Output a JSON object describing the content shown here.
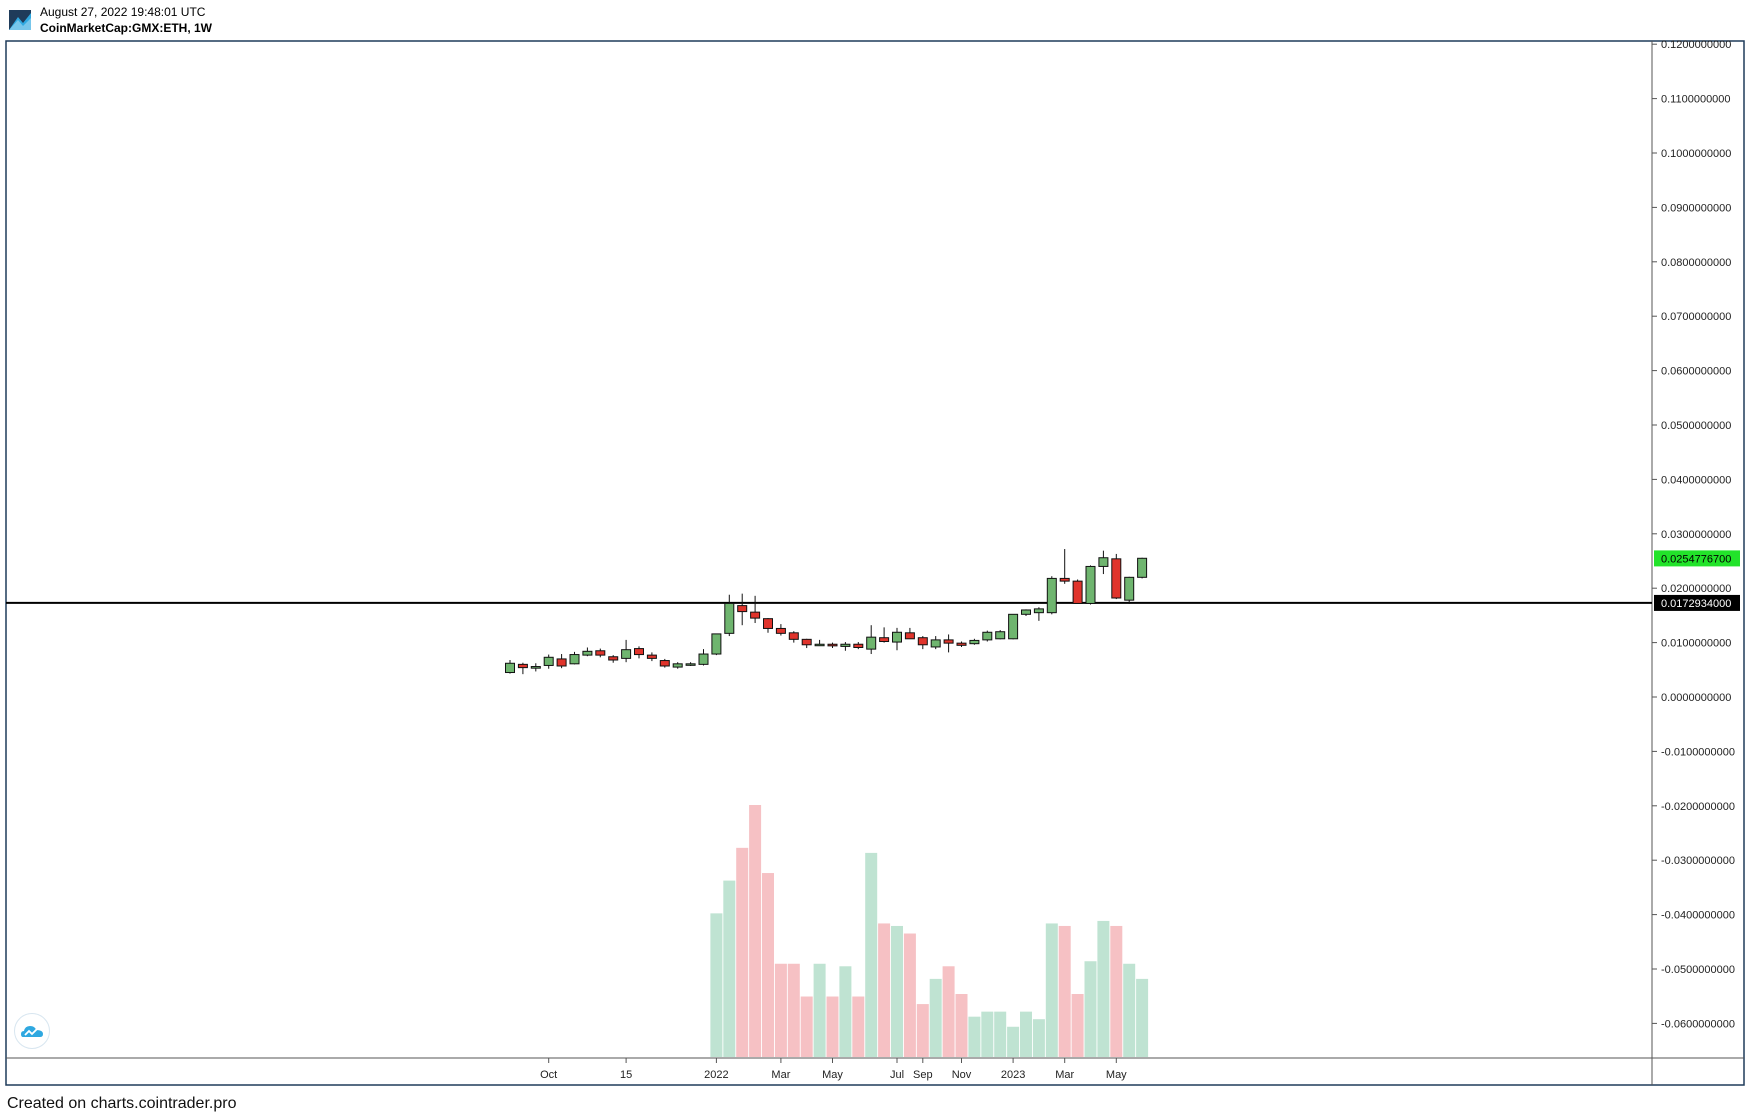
{
  "header": {
    "timestamp": "August 27, 2022 19:48:01 UTC",
    "symbol": "CoinMarketCap:GMX:ETH, 1W"
  },
  "footer": {
    "credit": "Created on charts.cointrader.pro"
  },
  "colors": {
    "up_candle": "#6fb56f",
    "down_candle": "#e0342c",
    "up_volume": "#bfe3d2",
    "down_volume": "#f6c1c4",
    "last_price_tag": "#22e32a",
    "horizontal_line_tag": "#000000",
    "frame": "#1f3b5a"
  },
  "chart_data": {
    "type": "candlestick",
    "title": "CoinMarketCap:GMX:ETH, 1W",
    "y_axis": {
      "min": -0.065,
      "max": 0.12,
      "ticks": [
        "0.1200000000",
        "0.1100000000",
        "0.1000000000",
        "0.0900000000",
        "0.0800000000",
        "0.0700000000",
        "0.0600000000",
        "0.0500000000",
        "0.0400000000",
        "0.0300000000",
        "0.0200000000",
        "0.0100000000",
        "0.0000000000",
        "-0.0100000000",
        "-0.0200000000",
        "-0.0300000000",
        "-0.0400000000",
        "-0.0500000000",
        "-0.0600000000"
      ],
      "tick_values": [
        0.12,
        0.11,
        0.1,
        0.09,
        0.08,
        0.07,
        0.06,
        0.05,
        0.04,
        0.03,
        0.02,
        0.01,
        0.0,
        -0.01,
        -0.02,
        -0.03,
        -0.04,
        -0.05,
        -0.06
      ]
    },
    "x_axis": {
      "labels": [
        "Oct",
        "15",
        "2022",
        "Mar",
        "May",
        "Jul",
        "Sep",
        "Nov",
        "2023",
        "Mar",
        "May"
      ],
      "label_index": [
        3,
        9,
        16,
        21,
        25,
        30,
        32,
        35,
        39,
        43,
        47
      ]
    },
    "last_price": {
      "value": 0.02547767,
      "label": "0.0254776700"
    },
    "horizontal_line": {
      "value": 0.0172934,
      "label": "0.0172934000"
    },
    "candles": [
      {
        "o": 0.0045,
        "h": 0.0068,
        "l": 0.0043,
        "c": 0.0062
      },
      {
        "o": 0.006,
        "h": 0.0063,
        "l": 0.0042,
        "c": 0.0054
      },
      {
        "o": 0.0053,
        "h": 0.0062,
        "l": 0.0047,
        "c": 0.0056
      },
      {
        "o": 0.0058,
        "h": 0.0078,
        "l": 0.0052,
        "c": 0.0073
      },
      {
        "o": 0.007,
        "h": 0.0079,
        "l": 0.0053,
        "c": 0.0057
      },
      {
        "o": 0.0061,
        "h": 0.0083,
        "l": 0.006,
        "c": 0.0078
      },
      {
        "o": 0.0077,
        "h": 0.0091,
        "l": 0.0075,
        "c": 0.0084
      },
      {
        "o": 0.0085,
        "h": 0.0089,
        "l": 0.0073,
        "c": 0.0077
      },
      {
        "o": 0.0074,
        "h": 0.0077,
        "l": 0.0063,
        "c": 0.0068
      },
      {
        "o": 0.0071,
        "h": 0.0105,
        "l": 0.0064,
        "c": 0.0087
      },
      {
        "o": 0.0089,
        "h": 0.0093,
        "l": 0.0071,
        "c": 0.0078
      },
      {
        "o": 0.0077,
        "h": 0.0082,
        "l": 0.0066,
        "c": 0.0071
      },
      {
        "o": 0.0067,
        "h": 0.007,
        "l": 0.0054,
        "c": 0.0057
      },
      {
        "o": 0.0055,
        "h": 0.0064,
        "l": 0.0052,
        "c": 0.0061
      },
      {
        "o": 0.0059,
        "h": 0.0064,
        "l": 0.0057,
        "c": 0.0061
      },
      {
        "o": 0.006,
        "h": 0.0088,
        "l": 0.0058,
        "c": 0.0079
      },
      {
        "o": 0.0079,
        "h": 0.0116,
        "l": 0.0077,
        "c": 0.0116
      },
      {
        "o": 0.0117,
        "h": 0.0188,
        "l": 0.0112,
        "c": 0.0172
      },
      {
        "o": 0.0168,
        "h": 0.019,
        "l": 0.0132,
        "c": 0.0157
      },
      {
        "o": 0.0156,
        "h": 0.0186,
        "l": 0.0136,
        "c": 0.0145
      },
      {
        "o": 0.0144,
        "h": 0.0145,
        "l": 0.0118,
        "c": 0.0126
      },
      {
        "o": 0.0126,
        "h": 0.0134,
        "l": 0.0113,
        "c": 0.0117
      },
      {
        "o": 0.0118,
        "h": 0.0121,
        "l": 0.01,
        "c": 0.0106
      },
      {
        "o": 0.0106,
        "h": 0.0107,
        "l": 0.009,
        "c": 0.0096
      },
      {
        "o": 0.0096,
        "h": 0.0105,
        "l": 0.0094,
        "c": 0.0097
      },
      {
        "o": 0.0097,
        "h": 0.01,
        "l": 0.009,
        "c": 0.0094
      },
      {
        "o": 0.0093,
        "h": 0.0101,
        "l": 0.0085,
        "c": 0.0097
      },
      {
        "o": 0.0097,
        "h": 0.0101,
        "l": 0.0088,
        "c": 0.0091
      },
      {
        "o": 0.0088,
        "h": 0.0132,
        "l": 0.0079,
        "c": 0.011
      },
      {
        "o": 0.0109,
        "h": 0.0128,
        "l": 0.01,
        "c": 0.0102
      },
      {
        "o": 0.0101,
        "h": 0.0127,
        "l": 0.0086,
        "c": 0.0119
      },
      {
        "o": 0.0118,
        "h": 0.0127,
        "l": 0.0109,
        "c": 0.0107
      },
      {
        "o": 0.0109,
        "h": 0.0112,
        "l": 0.0088,
        "c": 0.0096
      },
      {
        "o": 0.0092,
        "h": 0.0112,
        "l": 0.0088,
        "c": 0.0105
      },
      {
        "o": 0.0105,
        "h": 0.0115,
        "l": 0.0082,
        "c": 0.0099
      },
      {
        "o": 0.0099,
        "h": 0.0102,
        "l": 0.0092,
        "c": 0.0095
      },
      {
        "o": 0.0098,
        "h": 0.0107,
        "l": 0.0096,
        "c": 0.0104
      },
      {
        "o": 0.0105,
        "h": 0.0122,
        "l": 0.0102,
        "c": 0.0119
      },
      {
        "o": 0.0107,
        "h": 0.0123,
        "l": 0.0106,
        "c": 0.012
      },
      {
        "o": 0.0107,
        "h": 0.0152,
        "l": 0.0106,
        "c": 0.0152
      },
      {
        "o": 0.0152,
        "h": 0.0161,
        "l": 0.0149,
        "c": 0.016
      },
      {
        "o": 0.0155,
        "h": 0.0165,
        "l": 0.014,
        "c": 0.0162
      },
      {
        "o": 0.0155,
        "h": 0.0222,
        "l": 0.0152,
        "c": 0.0218
      },
      {
        "o": 0.0218,
        "h": 0.0272,
        "l": 0.0208,
        "c": 0.0213
      },
      {
        "o": 0.0213,
        "h": 0.0216,
        "l": 0.0172,
        "c": 0.0172
      },
      {
        "o": 0.0172,
        "h": 0.0242,
        "l": 0.017,
        "c": 0.024
      },
      {
        "o": 0.024,
        "h": 0.0269,
        "l": 0.0226,
        "c": 0.0256
      },
      {
        "o": 0.0254,
        "h": 0.0263,
        "l": 0.018,
        "c": 0.0182
      },
      {
        "o": 0.0178,
        "h": 0.0221,
        "l": 0.0171,
        "c": 0.022
      },
      {
        "o": 0.022,
        "h": 0.0256,
        "l": 0.0218,
        "c": 0.0255
      }
    ],
    "volume_relative": [
      0.0,
      0.0,
      0.0,
      0.0,
      0.0,
      0.0,
      0.0,
      0.0,
      0.0,
      0.0,
      0.0,
      0.0,
      0.0,
      0.0,
      0.0,
      0.0,
      0.57,
      0.7,
      0.83,
      1.0,
      0.73,
      0.37,
      0.37,
      0.24,
      0.37,
      0.24,
      0.36,
      0.24,
      0.81,
      0.53,
      0.52,
      0.49,
      0.21,
      0.31,
      0.36,
      0.25,
      0.16,
      0.18,
      0.18,
      0.12,
      0.18,
      0.15,
      0.53,
      0.52,
      0.25,
      0.38,
      0.54,
      0.52,
      0.37,
      0.31
    ]
  }
}
